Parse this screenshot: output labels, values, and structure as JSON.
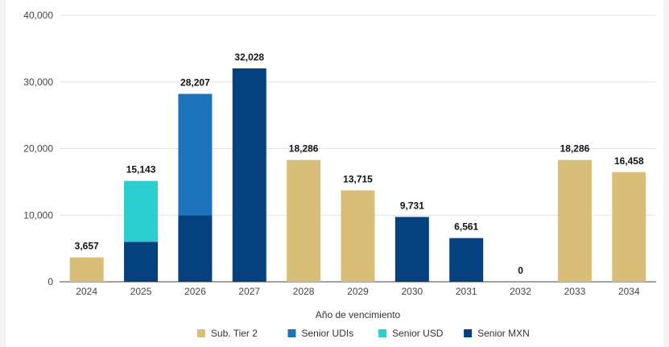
{
  "chart_data": {
    "type": "bar",
    "stacked": true,
    "categories": [
      "2024",
      "2025",
      "2026",
      "2027",
      "2028",
      "2029",
      "2030",
      "2031",
      "2032",
      "2033",
      "2034"
    ],
    "series": [
      {
        "name": "Sub. Tier 2",
        "color": "#d8be77",
        "values": [
          3657,
          0,
          0,
          0,
          18286,
          13715,
          0,
          0,
          0,
          18286,
          16458
        ]
      },
      {
        "name": "Senior UDIs",
        "color": "#1f73bd",
        "values": [
          0,
          0,
          18207,
          0,
          0,
          0,
          0,
          0,
          0,
          0,
          0
        ]
      },
      {
        "name": "Senior USD",
        "color": "#2ccfcf",
        "values": [
          0,
          9143,
          0,
          0,
          0,
          0,
          0,
          0,
          0,
          0,
          0
        ]
      },
      {
        "name": "Senior MXN",
        "color": "#05417f",
        "values": [
          0,
          6000,
          10000,
          32028,
          0,
          0,
          9731,
          6561,
          0,
          0,
          0
        ]
      }
    ],
    "stack_order": [
      "Senior MXN",
      "Senior UDIs",
      "Senior USD",
      "Sub. Tier 2"
    ],
    "totals": [
      "3,657",
      "15,143",
      "28,207",
      "32,028",
      "18,286",
      "13,715",
      "9,731",
      "6,561",
      "0",
      "18,286",
      "16,458"
    ],
    "xlabel": "Año de vencimiento",
    "ylabel": "",
    "ylim": [
      0,
      40000
    ],
    "yticks": [
      "0",
      "10,000",
      "20,000",
      "30,000",
      "40,000"
    ],
    "ytick_values": [
      0,
      10000,
      20000,
      30000,
      40000
    ],
    "grid": true,
    "legend_position": "bottom"
  }
}
